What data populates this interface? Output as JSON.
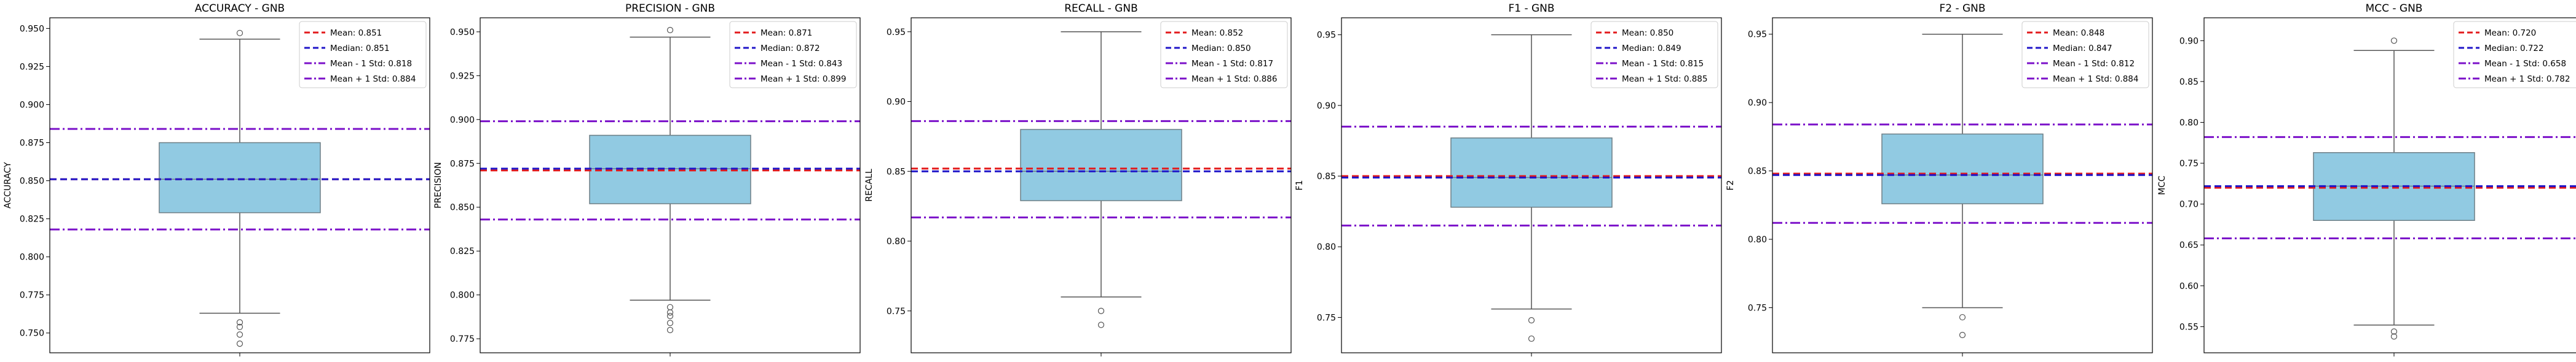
{
  "colors": {
    "box_fill": "#91cae2",
    "box_edge": "#6e7f86",
    "mean": "#e31a1c",
    "median": "#1f14c8",
    "std": "#7b10c9",
    "outlier_edge": "#555555"
  },
  "legend_labels": {
    "mean": "Mean",
    "median": "Median",
    "minus": "Mean - 1 Std",
    "plus": "Mean + 1 Std"
  },
  "chart_data": [
    {
      "type": "box",
      "title": "ACCURACY - GNB",
      "ylabel": "ACCURACY",
      "ylim": [
        0.737,
        0.957
      ],
      "yticks": [
        "0.750",
        "0.775",
        "0.800",
        "0.825",
        "0.850",
        "0.875",
        "0.900",
        "0.925",
        "0.950"
      ],
      "q1": 0.829,
      "median": 0.851,
      "q3": 0.875,
      "whisker_low": 0.763,
      "whisker_high": 0.943,
      "outliers": [
        0.947,
        0.757,
        0.754,
        0.749,
        0.743
      ],
      "mean": 0.851,
      "mean_minus_std": 0.818,
      "mean_plus_std": 0.884,
      "legend": [
        "Mean: 0.851",
        "Median: 0.851",
        "Mean - 1 Std: 0.818",
        "Mean + 1 Std: 0.884"
      ]
    },
    {
      "type": "box",
      "title": "PRECISION - GNB",
      "ylabel": "PRECISION",
      "ylim": [
        0.767,
        0.958
      ],
      "yticks": [
        "0.775",
        "0.800",
        "0.825",
        "0.850",
        "0.875",
        "0.900",
        "0.925",
        "0.950"
      ],
      "q1": 0.852,
      "median": 0.872,
      "q3": 0.891,
      "whisker_low": 0.797,
      "whisker_high": 0.947,
      "outliers": [
        0.951,
        0.793,
        0.79,
        0.788,
        0.784,
        0.78
      ],
      "mean": 0.871,
      "mean_minus_std": 0.843,
      "mean_plus_std": 0.899,
      "legend": [
        "Mean: 0.871",
        "Median: 0.872",
        "Mean - 1 Std: 0.843",
        "Mean + 1 Std: 0.899"
      ]
    },
    {
      "type": "box",
      "title": "RECALL - GNB",
      "ylabel": "RECALL",
      "ylim": [
        0.72,
        0.96
      ],
      "yticks": [
        "0.75",
        "0.80",
        "0.85",
        "0.90",
        "0.95"
      ],
      "q1": 0.829,
      "median": 0.85,
      "q3": 0.88,
      "whisker_low": 0.76,
      "whisker_high": 0.95,
      "outliers": [
        0.75,
        0.74
      ],
      "mean": 0.852,
      "mean_minus_std": 0.817,
      "mean_plus_std": 0.886,
      "legend": [
        "Mean: 0.852",
        "Median: 0.850",
        "Mean - 1 Std: 0.817",
        "Mean + 1 Std: 0.886"
      ]
    },
    {
      "type": "box",
      "title": "F1 - GNB",
      "ylabel": "F1",
      "ylim": [
        0.725,
        0.962
      ],
      "yticks": [
        "0.75",
        "0.80",
        "0.85",
        "0.90",
        "0.95"
      ],
      "q1": 0.828,
      "median": 0.849,
      "q3": 0.877,
      "whisker_low": 0.756,
      "whisker_high": 0.95,
      "outliers": [
        0.748,
        0.735
      ],
      "mean": 0.85,
      "mean_minus_std": 0.815,
      "mean_plus_std": 0.885,
      "legend": [
        "Mean: 0.850",
        "Median: 0.849",
        "Mean - 1 Std: 0.815",
        "Mean + 1 Std: 0.885"
      ]
    },
    {
      "type": "box",
      "title": "F2 - GNB",
      "ylabel": "F2",
      "ylim": [
        0.717,
        0.962
      ],
      "yticks": [
        "0.75",
        "0.80",
        "0.85",
        "0.90",
        "0.95"
      ],
      "q1": 0.826,
      "median": 0.847,
      "q3": 0.877,
      "whisker_low": 0.75,
      "whisker_high": 0.95,
      "outliers": [
        0.743,
        0.73
      ],
      "mean": 0.848,
      "mean_minus_std": 0.812,
      "mean_plus_std": 0.884,
      "legend": [
        "Mean: 0.848",
        "Median: 0.847",
        "Mean - 1 Std: 0.812",
        "Mean + 1 Std: 0.884"
      ]
    },
    {
      "type": "box",
      "title": "MCC - GNB",
      "ylabel": "MCC",
      "ylim": [
        0.518,
        0.928
      ],
      "yticks": [
        "0.55",
        "0.60",
        "0.65",
        "0.70",
        "0.75",
        "0.80",
        "0.85",
        "0.90"
      ],
      "q1": 0.68,
      "median": 0.722,
      "q3": 0.763,
      "whisker_low": 0.552,
      "whisker_high": 0.888,
      "outliers": [
        0.9,
        0.544,
        0.538
      ],
      "mean": 0.72,
      "mean_minus_std": 0.658,
      "mean_plus_std": 0.782,
      "legend": [
        "Mean: 0.720",
        "Median: 0.722",
        "Mean - 1 Std: 0.658",
        "Mean + 1 Std: 0.782"
      ]
    }
  ]
}
